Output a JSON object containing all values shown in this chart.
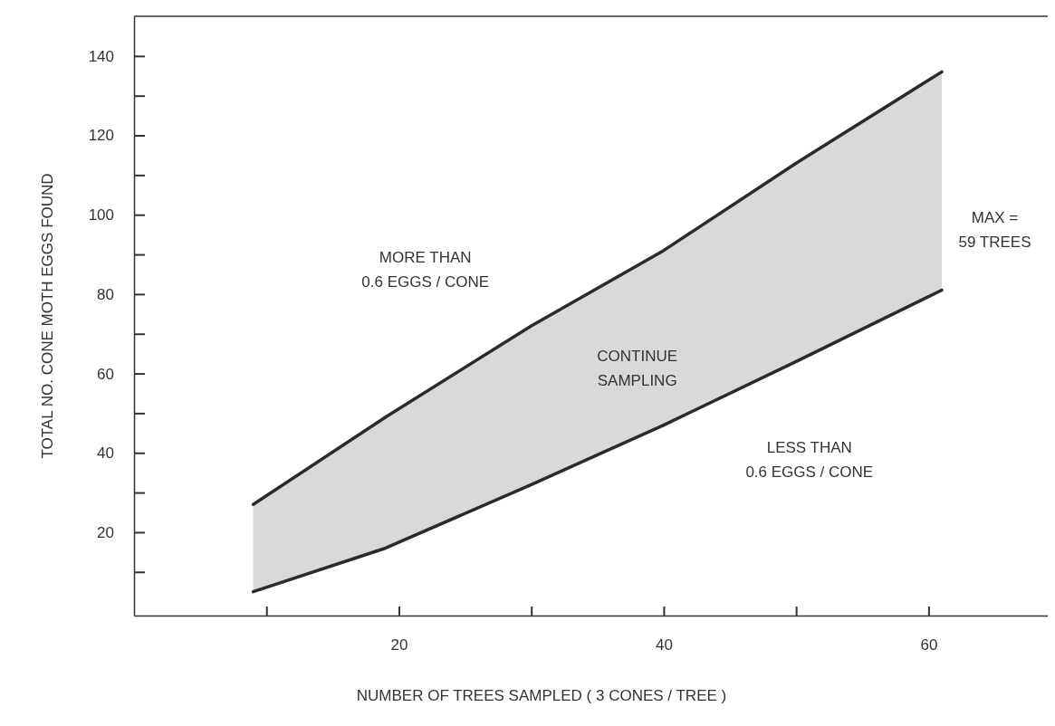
{
  "chart_data": {
    "type": "line",
    "xlabel": "NUMBER OF TREES SAMPLED ( 3 CONES / TREE )",
    "ylabel": "TOTAL NO. CONE MOTH EGGS FOUND",
    "xlim": [
      0,
      69
    ],
    "ylim": [
      -1,
      150
    ],
    "xticks": [
      {
        "value": 10,
        "label": null
      },
      20,
      {
        "value": 30,
        "label": null
      },
      40,
      {
        "value": 50,
        "label": null
      },
      60
    ],
    "yticks": [
      {
        "value": 10,
        "label": null
      },
      20,
      {
        "value": 30,
        "label": null
      },
      40,
      {
        "value": 50,
        "label": null
      },
      60,
      {
        "value": 70,
        "label": null
      },
      80,
      {
        "value": 90,
        "label": null
      },
      100,
      {
        "value": 110,
        "label": null
      },
      120,
      {
        "value": 130,
        "label": null
      },
      140
    ],
    "series": [
      {
        "color": "#2b2b2b",
        "x": [
          9,
          19,
          30,
          40,
          50,
          61
        ],
        "values": [
          27,
          49,
          72,
          91,
          113,
          136
        ],
        "lower": [
          5,
          16,
          32,
          47,
          63,
          81
        ],
        "upper": [
          27,
          49,
          72,
          91,
          113,
          136
        ]
      },
      {
        "color": "#2b2b2b",
        "x": [
          9,
          19,
          30,
          40,
          50,
          61
        ],
        "values": [
          5,
          16,
          32,
          47,
          63,
          81
        ]
      }
    ],
    "annotations": [
      "MORE THAN\n0.6 EGGS / CONE",
      "CONTINUE\nSAMPLING",
      "LESS THAN\n0.6 EGGS / CONE",
      "MAX =\n59 TREES"
    ]
  }
}
